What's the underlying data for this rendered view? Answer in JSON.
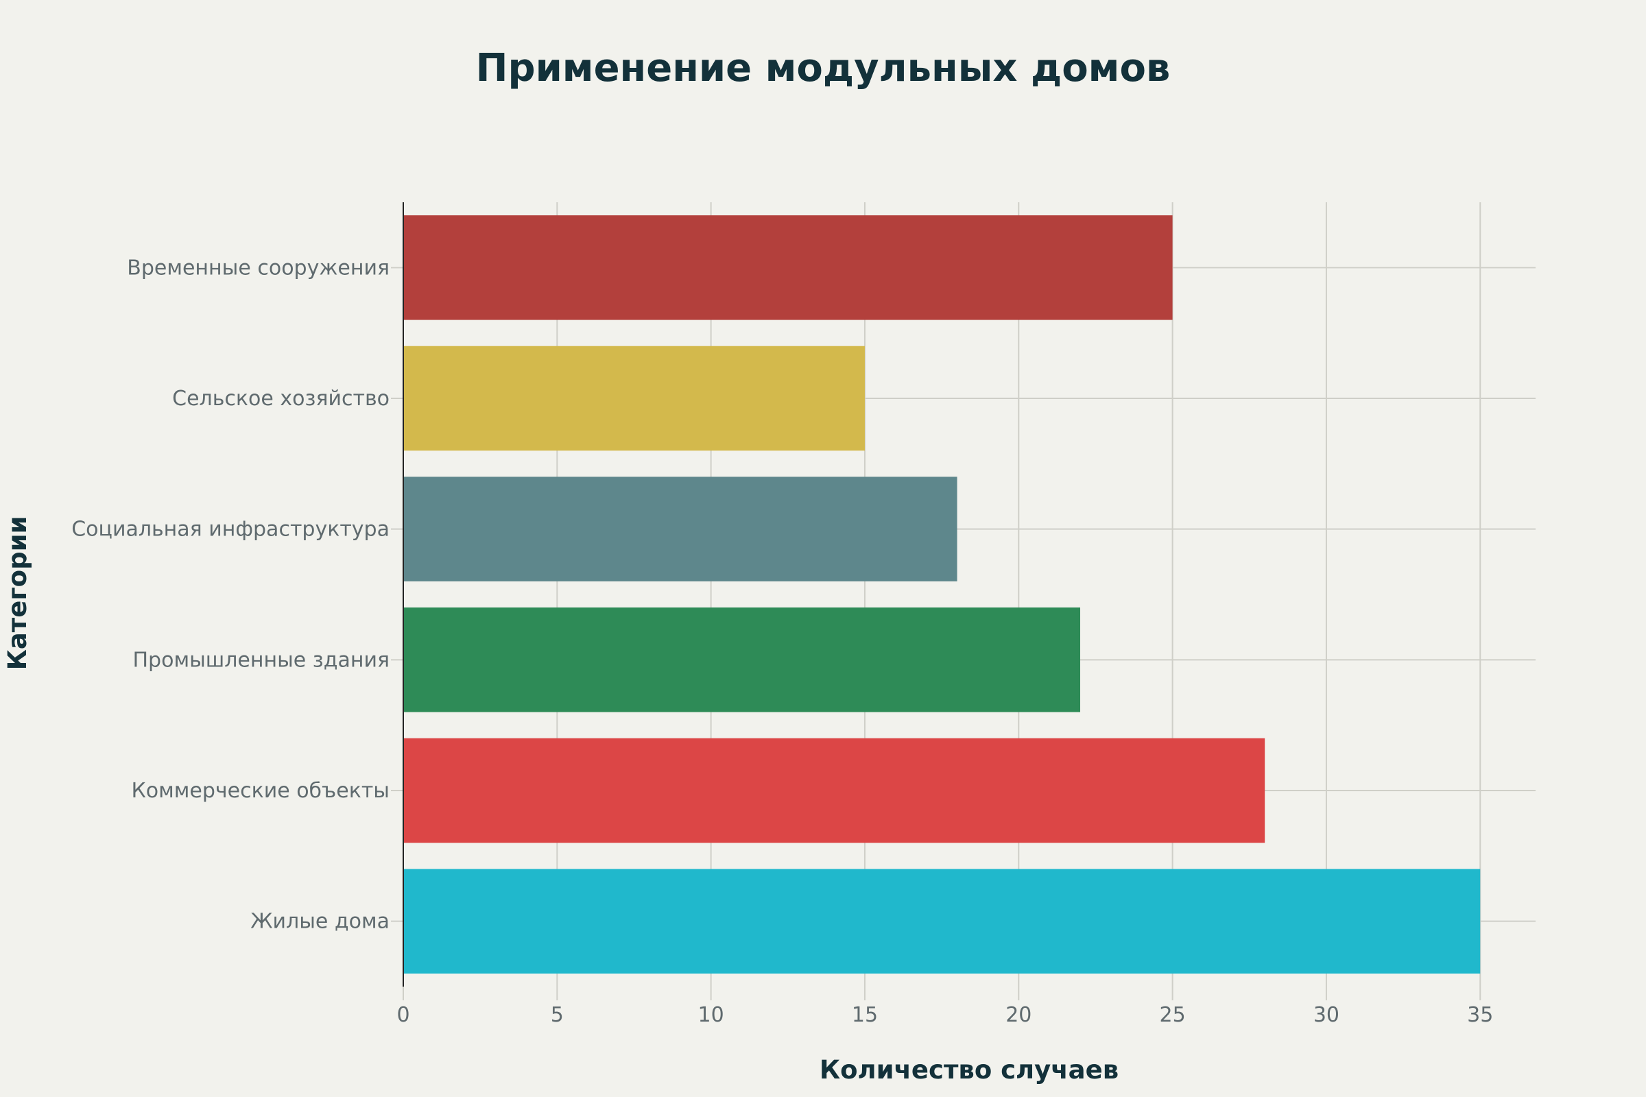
{
  "chart_data": {
    "type": "bar",
    "orientation": "horizontal",
    "title": "Применение модульных домов",
    "xlabel": "Количество случаев",
    "ylabel": "Категории",
    "categories": [
      "Временные сооружения",
      "Сельское хозяйство",
      "Социальная инфраструктура",
      "Промышленные здания",
      "Коммерческие объекты",
      "Жилые дома"
    ],
    "values": [
      25,
      15,
      18,
      22,
      28,
      35
    ],
    "colors": [
      "#b3403c",
      "#d3b94c",
      "#5e878c",
      "#2e8b57",
      "#dc4646",
      "#20b8cc"
    ],
    "xlim": [
      0,
      36.8
    ],
    "xticks": [
      0,
      5,
      10,
      15,
      20,
      25,
      30,
      35
    ],
    "grid": true,
    "legend": "none"
  }
}
